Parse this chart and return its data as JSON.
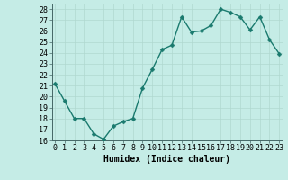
{
  "x": [
    0,
    1,
    2,
    3,
    4,
    5,
    6,
    7,
    8,
    9,
    10,
    11,
    12,
    13,
    14,
    15,
    16,
    17,
    18,
    19,
    20,
    21,
    22,
    23
  ],
  "y": [
    21.2,
    19.6,
    18.0,
    18.0,
    16.6,
    16.1,
    17.3,
    17.7,
    18.0,
    20.8,
    22.5,
    24.3,
    24.7,
    27.3,
    25.9,
    26.0,
    26.5,
    28.0,
    27.7,
    27.3,
    26.1,
    27.3,
    25.2,
    23.9
  ],
  "line_color": "#1a7a6e",
  "marker_color": "#1a7a6e",
  "bg_color": "#c5ece6",
  "grid_major_color": "#b0d8d0",
  "grid_minor_color": "#c0e4de",
  "xlabel": "Humidex (Indice chaleur)",
  "ylim": [
    16,
    28.5
  ],
  "xlim": [
    -0.3,
    23.3
  ],
  "yticks": [
    16,
    17,
    18,
    19,
    20,
    21,
    22,
    23,
    24,
    25,
    26,
    27,
    28
  ],
  "xticks": [
    0,
    1,
    2,
    3,
    4,
    5,
    6,
    7,
    8,
    9,
    10,
    11,
    12,
    13,
    14,
    15,
    16,
    17,
    18,
    19,
    20,
    21,
    22,
    23
  ],
  "xlabel_fontsize": 7,
  "tick_fontsize": 6,
  "line_width": 1.0,
  "marker_size": 2.5
}
